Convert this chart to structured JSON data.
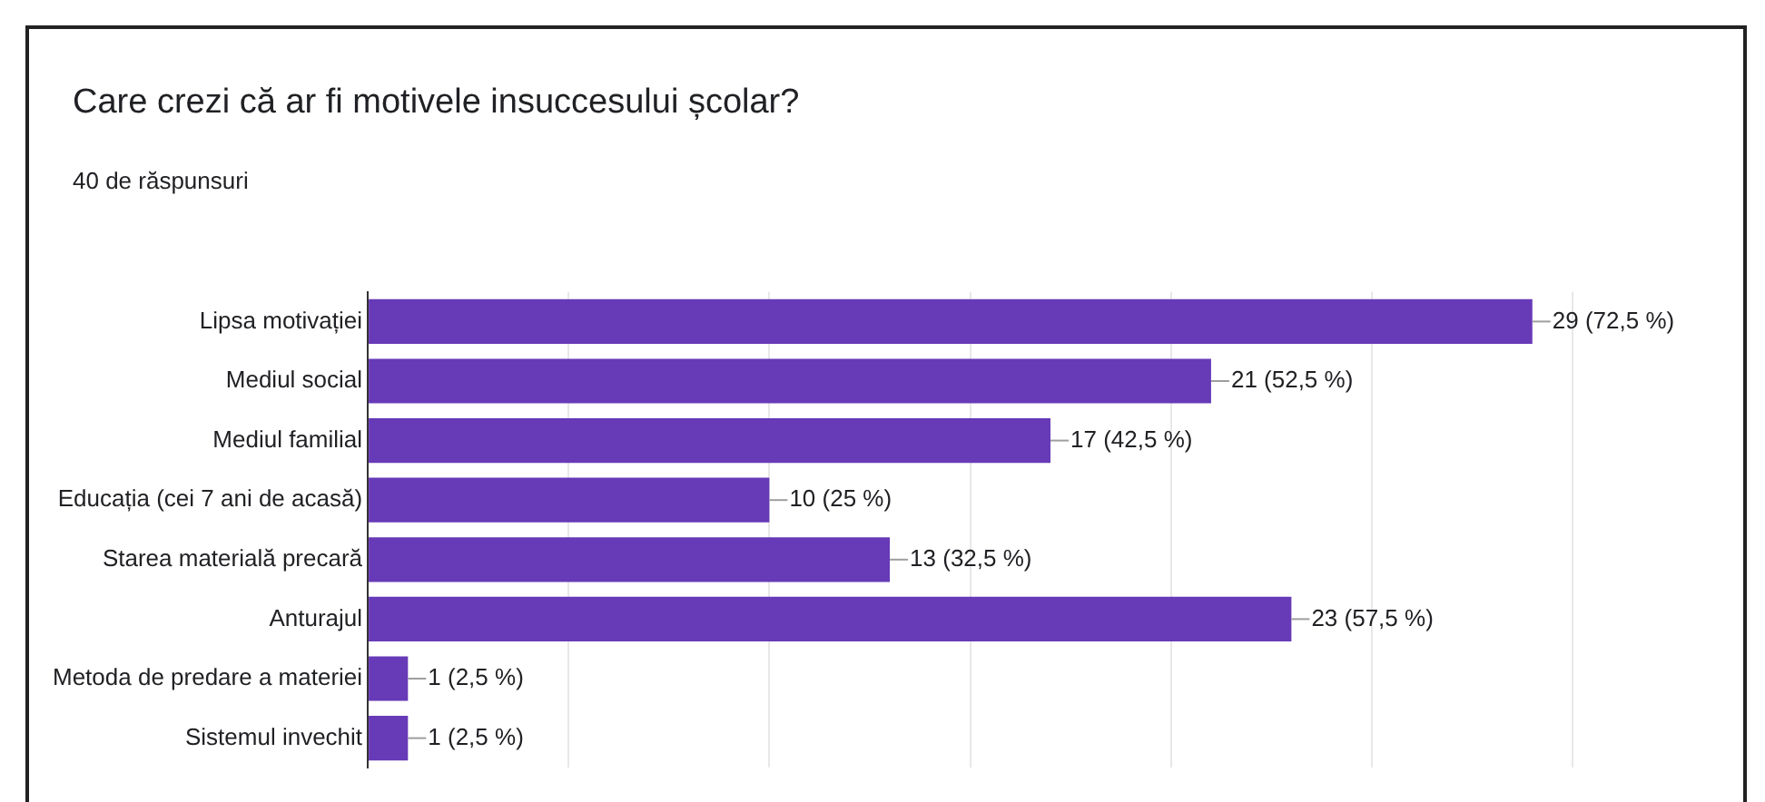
{
  "chart_data": {
    "type": "bar",
    "orientation": "horizontal",
    "title": "Care crezi că ar fi motivele insuccesului școlar?",
    "subtitle": "40 de răspunsuri",
    "categories": [
      "Lipsa motivației",
      "Mediul social",
      "Mediul familial",
      "Educația (cei 7 ani de acasă)",
      "Starea materială precară",
      "Anturajul",
      "Metoda de predare a materiei",
      "Sistemul invechit"
    ],
    "values": [
      29,
      21,
      17,
      10,
      13,
      23,
      1,
      1
    ],
    "value_labels": [
      "29 (72,5 %)",
      "21 (52,5 %)",
      "17 (42,5 %)",
      "10 (25 %)",
      "13 (32,5 %)",
      "23 (57,5 %)",
      "1 (2,5 %)",
      "1 (2,5 %)"
    ],
    "color": "#673ab7",
    "xlim": [
      0,
      30
    ],
    "xticks": [
      {
        "value": 0,
        "label": null
      },
      {
        "value": 5,
        "label": null
      },
      {
        "value": 10,
        "label": null
      },
      {
        "value": 15,
        "label": null
      },
      {
        "value": 20,
        "label": null
      },
      {
        "value": 25,
        "label": null
      },
      {
        "value": 30,
        "label": null
      }
    ],
    "grid": "x",
    "tick_labels": "y",
    "legend": false
  }
}
